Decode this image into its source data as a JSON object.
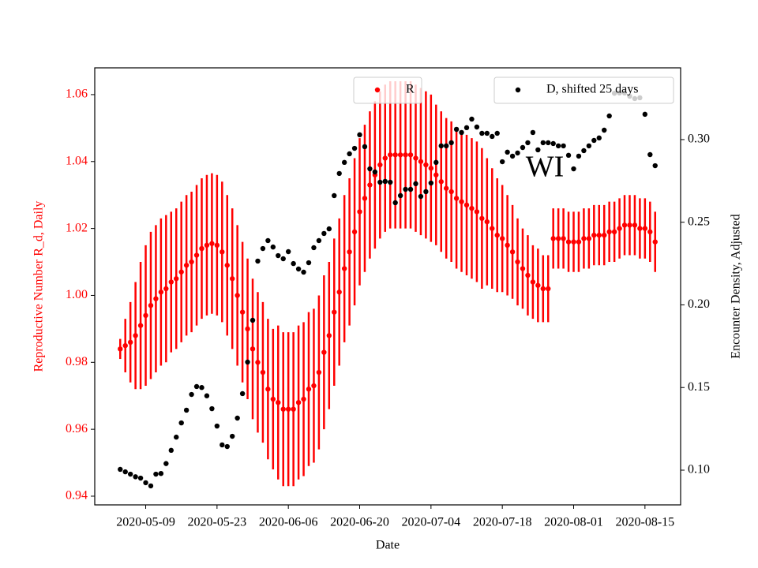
{
  "chart_data": {
    "type": "scatter",
    "annotation": "WI",
    "xlabel": "Date",
    "ylabel": "Reproductive Number R_d, Daily",
    "y2label": "Encounter Density, Adjusted",
    "x": [
      "2020-05-04",
      "2020-05-05",
      "2020-05-06",
      "2020-05-07",
      "2020-05-08",
      "2020-05-09",
      "2020-05-10",
      "2020-05-11",
      "2020-05-12",
      "2020-05-13",
      "2020-05-14",
      "2020-05-15",
      "2020-05-16",
      "2020-05-17",
      "2020-05-18",
      "2020-05-19",
      "2020-05-20",
      "2020-05-21",
      "2020-05-22",
      "2020-05-23",
      "2020-05-24",
      "2020-05-25",
      "2020-05-26",
      "2020-05-27",
      "2020-05-28",
      "2020-05-29",
      "2020-05-30",
      "2020-05-31",
      "2020-06-01",
      "2020-06-02",
      "2020-06-03",
      "2020-06-04",
      "2020-06-05",
      "2020-06-06",
      "2020-06-07",
      "2020-06-08",
      "2020-06-09",
      "2020-06-10",
      "2020-06-11",
      "2020-06-12",
      "2020-06-13",
      "2020-06-14",
      "2020-06-15",
      "2020-06-16",
      "2020-06-17",
      "2020-06-18",
      "2020-06-19",
      "2020-06-20",
      "2020-06-21",
      "2020-06-22",
      "2020-06-23",
      "2020-06-24",
      "2020-06-25",
      "2020-06-26",
      "2020-06-27",
      "2020-06-28",
      "2020-06-29",
      "2020-06-30",
      "2020-07-01",
      "2020-07-02",
      "2020-07-03",
      "2020-07-04",
      "2020-07-05",
      "2020-07-06",
      "2020-07-07",
      "2020-07-08",
      "2020-07-09",
      "2020-07-10",
      "2020-07-11",
      "2020-07-12",
      "2020-07-13",
      "2020-07-14",
      "2020-07-15",
      "2020-07-16",
      "2020-07-17",
      "2020-07-18",
      "2020-07-19",
      "2020-07-20",
      "2020-07-21",
      "2020-07-22",
      "2020-07-23",
      "2020-07-24",
      "2020-07-25",
      "2020-07-26",
      "2020-07-27",
      "2020-07-28",
      "2020-07-29",
      "2020-07-30",
      "2020-07-31",
      "2020-08-01",
      "2020-08-02",
      "2020-08-03",
      "2020-08-04",
      "2020-08-05",
      "2020-08-06",
      "2020-08-07",
      "2020-08-08",
      "2020-08-09",
      "2020-08-10",
      "2020-08-11",
      "2020-08-12",
      "2020-08-13",
      "2020-08-14",
      "2020-08-15",
      "2020-08-16",
      "2020-08-17"
    ],
    "series": [
      {
        "name": "R",
        "color": "#ff0000",
        "values": [
          0.984,
          0.985,
          0.986,
          0.988,
          0.991,
          0.994,
          0.997,
          0.999,
          1.001,
          1.002,
          1.004,
          1.005,
          1.007,
          1.009,
          1.01,
          1.012,
          1.014,
          1.015,
          1.0155,
          1.015,
          1.013,
          1.009,
          1.005,
          1.0,
          0.995,
          0.99,
          0.984,
          0.98,
          0.977,
          0.972,
          0.969,
          0.968,
          0.966,
          0.966,
          0.966,
          0.968,
          0.969,
          0.972,
          0.973,
          0.977,
          0.983,
          0.988,
          0.995,
          1.001,
          1.008,
          1.013,
          1.019,
          1.025,
          1.029,
          1.033,
          1.036,
          1.039,
          1.041,
          1.042,
          1.042,
          1.042,
          1.042,
          1.042,
          1.041,
          1.04,
          1.039,
          1.038,
          1.036,
          1.034,
          1.032,
          1.031,
          1.029,
          1.028,
          1.027,
          1.026,
          1.025,
          1.023,
          1.022,
          1.02,
          1.018,
          1.017,
          1.015,
          1.013,
          1.01,
          1.008,
          1.006,
          1.004,
          1.003,
          1.002,
          1.002,
          1.017,
          1.017,
          1.017,
          1.016,
          1.016,
          1.016,
          1.017,
          1.017,
          1.018,
          1.018,
          1.018,
          1.019,
          1.019,
          1.02,
          1.021,
          1.021,
          1.021,
          1.02,
          1.02,
          1.019,
          1.016
        ],
        "errors": [
          0.003,
          0.008,
          0.012,
          0.016,
          0.019,
          0.021,
          0.022,
          0.022,
          0.022,
          0.022,
          0.021,
          0.021,
          0.021,
          0.021,
          0.021,
          0.021,
          0.021,
          0.021,
          0.021,
          0.021,
          0.021,
          0.021,
          0.021,
          0.021,
          0.021,
          0.021,
          0.021,
          0.021,
          0.021,
          0.021,
          0.021,
          0.023,
          0.023,
          0.023,
          0.023,
          0.023,
          0.023,
          0.023,
          0.023,
          0.023,
          0.023,
          0.022,
          0.022,
          0.022,
          0.022,
          0.022,
          0.022,
          0.022,
          0.022,
          0.022,
          0.022,
          0.022,
          0.022,
          0.022,
          0.022,
          0.022,
          0.022,
          0.022,
          0.022,
          0.022,
          0.022,
          0.022,
          0.021,
          0.021,
          0.021,
          0.021,
          0.021,
          0.021,
          0.021,
          0.021,
          0.021,
          0.021,
          0.019,
          0.018,
          0.017,
          0.016,
          0.015,
          0.014,
          0.013,
          0.012,
          0.012,
          0.011,
          0.011,
          0.01,
          0.01,
          0.009,
          0.009,
          0.009,
          0.009,
          0.009,
          0.009,
          0.009,
          0.009,
          0.009,
          0.009,
          0.009,
          0.009,
          0.009,
          0.009,
          0.009,
          0.009,
          0.009,
          0.009,
          0.009,
          0.009,
          0.009
        ]
      },
      {
        "name": "D, shifted 25 days",
        "color": "#000000",
        "axis": "y2",
        "values": [
          0.1005,
          0.099,
          0.0976,
          0.096,
          0.0952,
          0.0924,
          0.0905,
          0.0976,
          0.098,
          0.104,
          0.112,
          0.12,
          0.1286,
          0.1363,
          0.1458,
          0.1506,
          0.15,
          0.145,
          0.1372,
          0.1267,
          0.1153,
          0.1143,
          0.1205,
          0.1315,
          0.1463,
          0.1654,
          0.1907,
          0.2265,
          0.2341,
          0.2389,
          0.235,
          0.2298,
          0.2279,
          0.2322,
          0.225,
          0.2217,
          0.2198,
          0.2255,
          0.2346,
          0.2389,
          0.2432,
          0.246,
          0.2661,
          0.2795,
          0.2862,
          0.2914,
          0.2947,
          0.3029,
          0.2957,
          0.2823,
          0.2804,
          0.2742,
          0.2747,
          0.2742,
          0.2618,
          0.2661,
          0.2699,
          0.2699,
          0.2733,
          0.2656,
          0.2685,
          0.2737,
          0.2862,
          0.2962,
          0.2962,
          0.2981,
          0.3062,
          0.3043,
          0.3072,
          0.3124,
          0.3076,
          0.3038,
          0.3038,
          0.3019,
          0.3038,
          0.2866,
          0.2924,
          0.29,
          0.2919,
          0.2952,
          0.2981,
          0.3043,
          0.2938,
          0.2981,
          0.2981,
          0.2976,
          0.2962,
          0.2962,
          0.2905,
          0.2823,
          0.29,
          0.2933,
          0.2962,
          0.2995,
          0.301,
          0.3057,
          0.3143,
          0.328,
          0.3282,
          0.3282,
          0.3262,
          0.3248,
          0.3253,
          0.3153,
          0.2909,
          0.2842
        ]
      }
    ],
    "xlim": [
      "2020-04-29",
      "2020-08-22"
    ],
    "xticks": [
      "2020-05-09",
      "2020-05-23",
      "2020-06-06",
      "2020-06-20",
      "2020-07-04",
      "2020-07-18",
      "2020-08-01",
      "2020-08-15"
    ],
    "ylim": [
      0.9374,
      1.068
    ],
    "yticks": [
      0.94,
      0.96,
      0.98,
      {
        "value": 1,
        "label": "1.00"
      },
      1.02,
      1.04,
      1.06
    ],
    "y2lim": [
      0.079,
      0.3434
    ],
    "y2ticks": [
      {
        "value": 0.1,
        "label": "0.10"
      },
      0.15,
      {
        "value": 0.2,
        "label": "0.20"
      },
      0.25,
      {
        "value": 0.3,
        "label": "0.30"
      }
    ]
  }
}
